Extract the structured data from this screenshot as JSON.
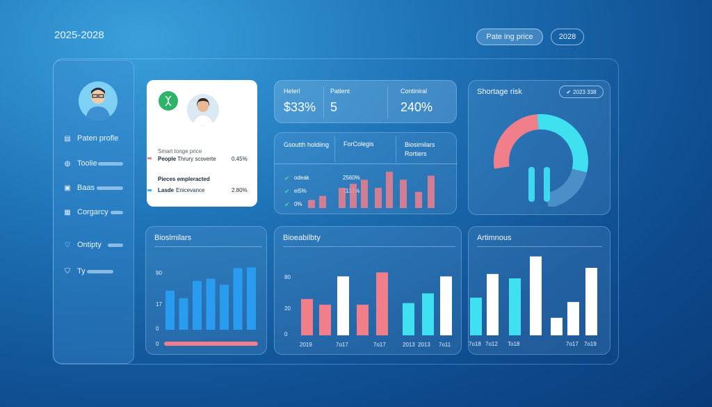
{
  "header": {
    "title": "2025-2028",
    "pill_price": "Pate ing price",
    "pill_year": "2028"
  },
  "sidebar": {
    "items": [
      {
        "label": "Paten profle",
        "icon": "clipboard-icon"
      },
      {
        "label": "Toolie",
        "icon": "globe-icon"
      },
      {
        "label": "Baas",
        "icon": "lock-icon"
      },
      {
        "label": "Corgarcy",
        "icon": "calendar-icon"
      },
      {
        "label": "Ontipty",
        "icon": "heart-icon"
      },
      {
        "label": "Ty",
        "icon": "shield-icon"
      }
    ]
  },
  "profile_card": {
    "heading": "Smart tonge price",
    "rows": [
      {
        "label": "People",
        "desc": "Thrury scoverte",
        "value": "0.45%",
        "color": "#f07f8b"
      },
      {
        "label": "Pieces empleracted",
        "desc": "",
        "value": "",
        "color": ""
      },
      {
        "label": "Lasde",
        "desc": "Enicevance",
        "value": "2.80%",
        "color": "#3cb8e8"
      }
    ]
  },
  "stats": {
    "col1_label": "Helerl",
    "col1_value": "$33%",
    "col2_label": "Patlent",
    "col2_value": "5",
    "col3_label": "Continiral",
    "col3_value": "240%"
  },
  "growth": {
    "headers": [
      "Gsoutth holdiing",
      "ForColegis",
      "Biosimilars Rortiers"
    ],
    "rows": [
      {
        "label": "odeak",
        "value": "2560%"
      },
      {
        "label": "ei5%",
        "value": "1132%"
      },
      {
        "label": "0%",
        "value": ""
      }
    ]
  },
  "risk": {
    "title": "Shortage risk",
    "badge": "2023 338"
  },
  "bottom": {
    "biosimilars": {
      "title": "Bioslmilars",
      "ticks": [
        "90",
        "17",
        "0",
        "0"
      ]
    },
    "biosability": {
      "title": "Bioeabilbty",
      "ticks": [
        "80",
        "20",
        "0"
      ],
      "xlabels": [
        "2019",
        "7o17",
        "7o17",
        "2013",
        "2013",
        "7o11"
      ]
    },
    "artimnous": {
      "title": "Artimnous",
      "xlabels": [
        "7o18",
        "7o12",
        "To18",
        "7o17",
        "7o19"
      ]
    }
  },
  "colors": {
    "pink": "#f07f8b",
    "cyan": "#3fe0f0",
    "blue": "#2a9cf0",
    "white": "#ffffff"
  },
  "chart_data": [
    {
      "type": "bar",
      "title": "",
      "values": [
        2,
        3,
        5,
        6,
        7,
        5,
        9,
        7,
        4,
        8
      ],
      "series_colors": [
        "pink"
      ]
    },
    {
      "type": "bar",
      "title": "Bioslmilars",
      "values": [
        52,
        42,
        65,
        68,
        60,
        82,
        83
      ],
      "ylim": [
        0,
        100
      ]
    },
    {
      "type": "bar",
      "title": "Bioeabilbty",
      "values": [
        45,
        38,
        73,
        38,
        78,
        40,
        52,
        73
      ],
      "ylim": [
        0,
        100
      ]
    },
    {
      "type": "bar",
      "title": "Artimnous",
      "values": [
        43,
        70,
        65,
        90,
        20,
        38,
        77
      ],
      "ylim": [
        0,
        100
      ]
    },
    {
      "type": "pie",
      "title": "Shortage risk",
      "values": [
        35,
        40,
        25
      ],
      "colors": [
        "#f07f8b",
        "#3fe0f0",
        "#4a8fc8"
      ]
    }
  ]
}
